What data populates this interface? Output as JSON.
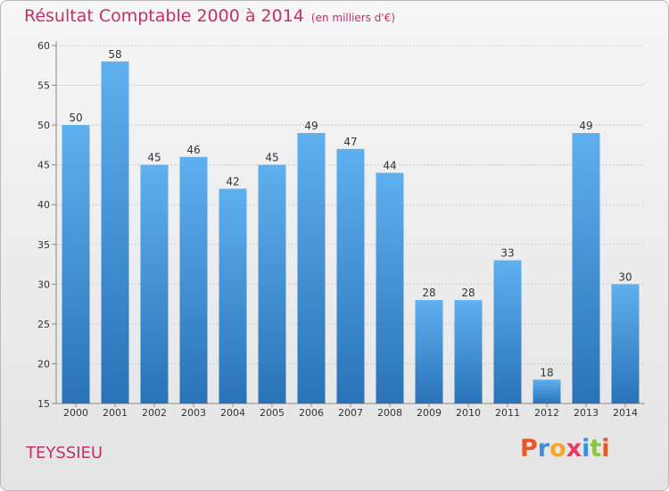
{
  "title": "Résultat Comptable 2000 à 2014",
  "unit": "(en milliers d'€)",
  "commune": "TEYSSIEU",
  "logo": {
    "letters": [
      "P",
      "r",
      "o",
      "x",
      "i",
      "t",
      "i"
    ],
    "colors": [
      "#e8552a",
      "#3a8fd8",
      "#f5a623",
      "#e83a6a",
      "#3a8fd8",
      "#8cc63f",
      "#e8552a"
    ]
  },
  "colors": {
    "bar": "#3a8fd8",
    "bar_light": "#5fb0ee",
    "bar_dark": "#2a72b8",
    "title": "#c0306a",
    "grid": "#c8c8c8"
  },
  "chart_data": {
    "type": "bar",
    "title": "Résultat Comptable 2000 à 2014",
    "subtitle": "(en milliers d'€)",
    "categories": [
      "2000",
      "2001",
      "2002",
      "2003",
      "2004",
      "2005",
      "2006",
      "2007",
      "2008",
      "2009",
      "2010",
      "2011",
      "2012",
      "2013",
      "2014"
    ],
    "values": [
      50,
      58,
      45,
      46,
      42,
      45,
      49,
      47,
      44,
      28,
      28,
      33,
      18,
      49,
      30
    ],
    "ylim": [
      15,
      60
    ],
    "yticks": [
      15,
      20,
      25,
      30,
      35,
      40,
      45,
      50,
      55,
      60
    ],
    "grid": true,
    "xlabel": "",
    "ylabel": ""
  }
}
